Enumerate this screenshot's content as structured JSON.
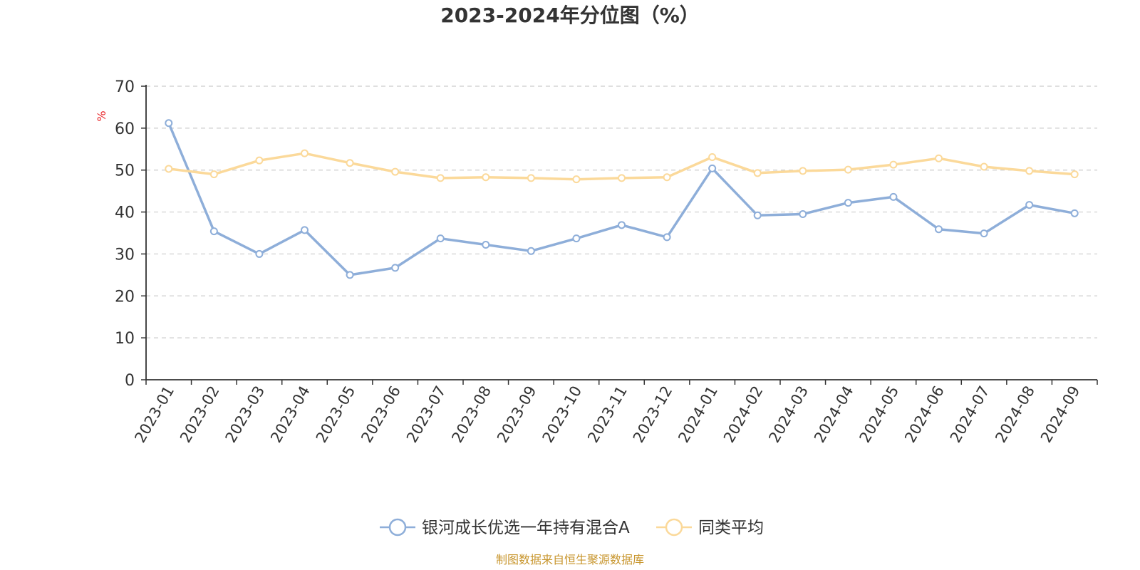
{
  "source_note": "制图数据来自恒生聚源数据库",
  "colors": {
    "fund": "#8eaed9",
    "peer": "#fbd99a",
    "source_note": "#c8962e",
    "unit": "#e8262a"
  },
  "chart_data": {
    "type": "line",
    "title": "2023-2024年分位图（%）",
    "ylabel": "%",
    "ylim": [
      0,
      70
    ],
    "yticks": [
      0,
      10,
      20,
      30,
      40,
      50,
      60,
      70
    ],
    "grid": true,
    "legend_position": "bottom",
    "categories": [
      "2023-01",
      "2023-02",
      "2023-03",
      "2023-04",
      "2023-05",
      "2023-06",
      "2023-07",
      "2023-08",
      "2023-09",
      "2023-10",
      "2023-11",
      "2023-12",
      "2024-01",
      "2024-02",
      "2024-03",
      "2024-04",
      "2024-05",
      "2024-06",
      "2024-07",
      "2024-08",
      "2024-09"
    ],
    "series": [
      {
        "name": "银河成长优选一年持有混合A",
        "values": [
          61.2,
          35.4,
          30.0,
          35.7,
          25.0,
          26.7,
          33.7,
          32.2,
          30.7,
          33.7,
          36.9,
          34.0,
          50.4,
          39.2,
          39.5,
          42.2,
          43.6,
          35.9,
          34.9,
          41.7,
          39.7
        ]
      },
      {
        "name": "同类平均",
        "values": [
          50.3,
          49.0,
          52.3,
          54.0,
          51.7,
          49.6,
          48.1,
          48.3,
          48.1,
          47.8,
          48.1,
          48.3,
          53.1,
          49.3,
          49.8,
          50.1,
          51.3,
          52.8,
          50.8,
          49.8,
          49.0
        ]
      }
    ]
  }
}
